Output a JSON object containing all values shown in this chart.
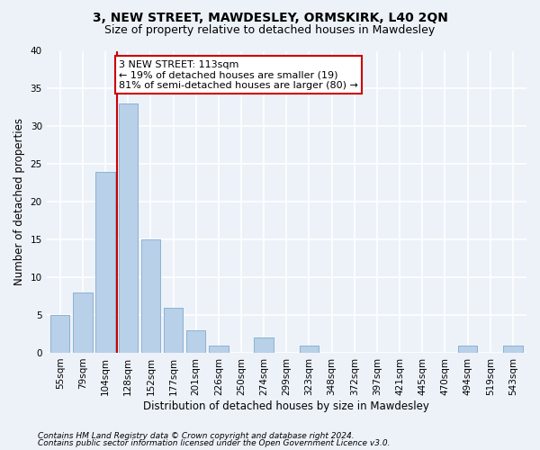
{
  "title": "3, NEW STREET, MAWDESLEY, ORMSKIRK, L40 2QN",
  "subtitle": "Size of property relative to detached houses in Mawdesley",
  "xlabel": "Distribution of detached houses by size in Mawdesley",
  "ylabel": "Number of detached properties",
  "categories": [
    "55sqm",
    "79sqm",
    "104sqm",
    "128sqm",
    "152sqm",
    "177sqm",
    "201sqm",
    "226sqm",
    "250sqm",
    "274sqm",
    "299sqm",
    "323sqm",
    "348sqm",
    "372sqm",
    "397sqm",
    "421sqm",
    "445sqm",
    "470sqm",
    "494sqm",
    "519sqm",
    "543sqm"
  ],
  "values": [
    5,
    8,
    24,
    33,
    15,
    6,
    3,
    1,
    0,
    2,
    0,
    1,
    0,
    0,
    0,
    0,
    0,
    0,
    1,
    0,
    1
  ],
  "bar_color": "#b8d0e8",
  "bar_edgecolor": "#8ab0d0",
  "vline_x": 2.5,
  "vline_color": "#cc0000",
  "annotation_text": "3 NEW STREET: 113sqm\n← 19% of detached houses are smaller (19)\n81% of semi-detached houses are larger (80) →",
  "annotation_box_color": "#ffffff",
  "annotation_box_edgecolor": "#cc0000",
  "ylim": [
    0,
    40
  ],
  "yticks": [
    0,
    5,
    10,
    15,
    20,
    25,
    30,
    35,
    40
  ],
  "footnote1": "Contains HM Land Registry data © Crown copyright and database right 2024.",
  "footnote2": "Contains public sector information licensed under the Open Government Licence v3.0.",
  "background_color": "#edf2f9",
  "grid_color": "#ffffff",
  "title_fontsize": 10,
  "subtitle_fontsize": 9,
  "axis_label_fontsize": 8.5,
  "tick_fontsize": 7.5,
  "annotation_fontsize": 8,
  "footnote_fontsize": 6.5
}
